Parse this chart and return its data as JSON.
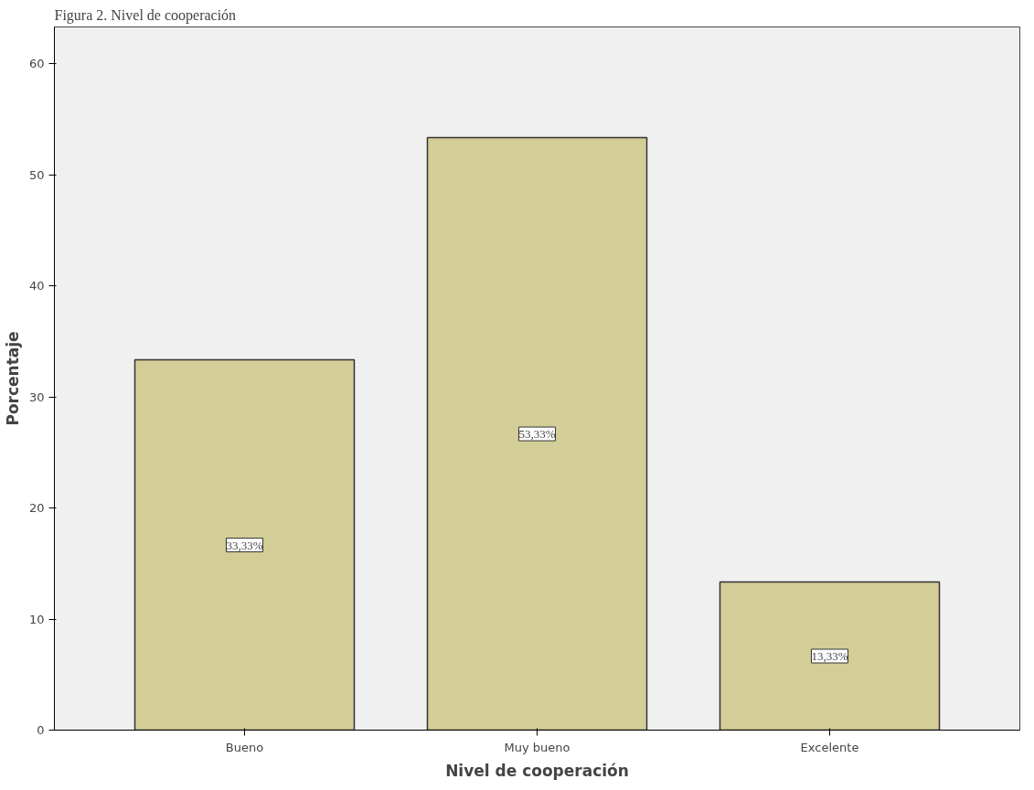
{
  "chart_data": {
    "type": "bar",
    "title": "Figura 2. Nivel de cooperación",
    "xlabel": "Nivel de cooperación",
    "ylabel": "Porcentaje",
    "categories": [
      "Bueno",
      "Muy bueno",
      "Excelente"
    ],
    "values": [
      33.33,
      53.33,
      13.33
    ],
    "color": "#d3ce97",
    "value_labels": [
      "33,33%",
      "53,33%",
      "13,33%"
    ],
    "ylim": [
      0,
      63.3
    ],
    "yticks": [
      0,
      10,
      20,
      30,
      40,
      50,
      60
    ],
    "grid": false
  }
}
